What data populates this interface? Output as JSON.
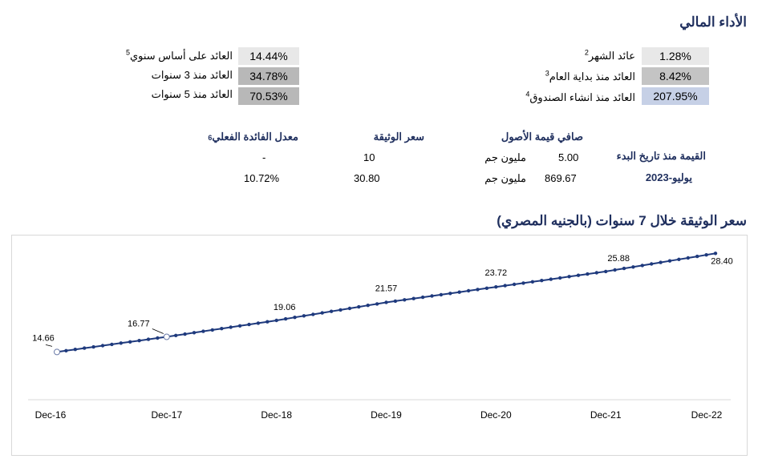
{
  "performance": {
    "title": "الأداء المالي",
    "right": [
      {
        "label": "عائد الشهر",
        "sup": "2",
        "value": "1.28%",
        "color": "#e8e8e8"
      },
      {
        "label": "العائد منذ بداية العام",
        "sup": "3",
        "value": "8.42%",
        "color": "#c4c4c4"
      },
      {
        "label": "العائد منذ انشاء الصندوق",
        "sup": "4",
        "value": "207.95%",
        "color": "#c6d0e6"
      }
    ],
    "left": [
      {
        "label": "العائد على أساس سنوي",
        "sup": "5",
        "value": "14.44%",
        "color": "#e8e8e8"
      },
      {
        "label": "العائد منذ 3 سنوات",
        "sup": "",
        "value": "34.78%",
        "color": "#b8b8b8"
      },
      {
        "label": "العائد منذ 5 سنوات",
        "sup": "",
        "value": "70.53%",
        "color": "#b8b8b8"
      }
    ]
  },
  "summary": {
    "headers": {
      "inception": "القيمة منذ تاريخ البدء",
      "date": "يوليو-2023",
      "nav": "صافي قيمة الأصول",
      "price": "سعر الوثيقة",
      "yield": "معدل الفائدة الفعلي",
      "yield_sub": "6"
    },
    "row1": {
      "nav_value": "5.00",
      "nav_unit": "مليون جم",
      "price": "10",
      "yield": "-"
    },
    "row2": {
      "nav_value": "869.67",
      "nav_unit": "مليون جم",
      "price": "30.80",
      "yield": "10.72%"
    }
  },
  "chart_title": "سعر الوثيقة خلال 7 سنوات (بالجنيه المصري)",
  "chart_data": {
    "type": "line",
    "title": "سعر الوثيقة خلال 7 سنوات (بالجنيه المصري)",
    "x_start": "Dec-16",
    "x_end": "Dec-22",
    "x_ticks": [
      "Dec-16",
      "Dec-17",
      "Dec-18",
      "Dec-19",
      "Dec-20",
      "Dec-21",
      "Dec-22"
    ],
    "points_per_year": 12,
    "series": [
      {
        "color": "#1f3a7d",
        "labeled_points": [
          {
            "x": "Dec-16",
            "y": 14.66
          },
          {
            "x": "Dec-17",
            "y": 16.77
          },
          {
            "x": "Dec-18",
            "y": 19.06
          },
          {
            "x": "Dec-19",
            "y": 21.57
          },
          {
            "x": "Dec-20",
            "y": 23.72
          },
          {
            "x": "Dec-21",
            "y": 25.88
          },
          {
            "x": "Dec-22",
            "y": 28.4
          }
        ]
      }
    ],
    "ylim": [
      8,
      30
    ],
    "grid": false
  }
}
